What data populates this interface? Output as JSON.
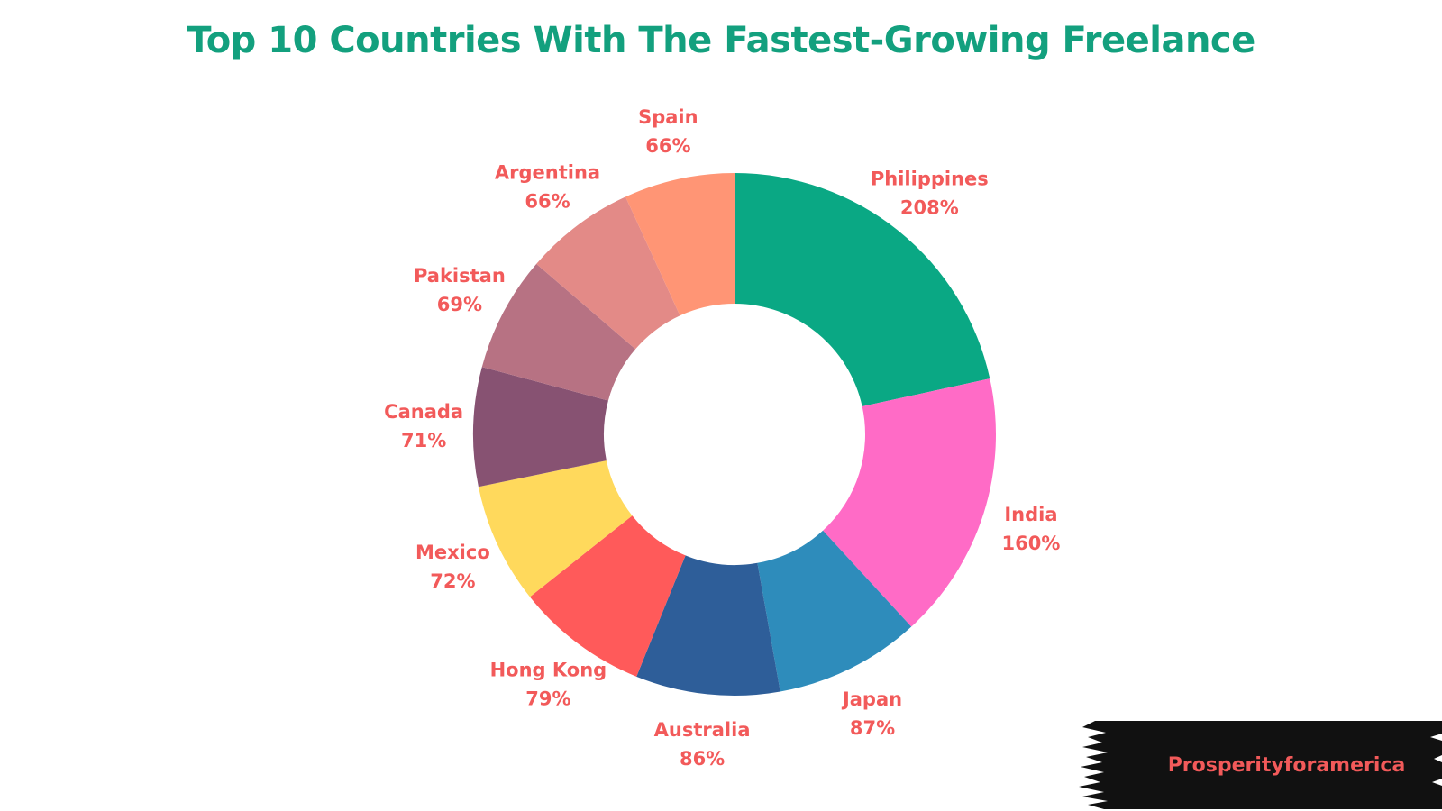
{
  "title": "Top 10 Countries With The Fastest-Growing Freelance",
  "watermark": {
    "text": "Prosperityforamerica"
  },
  "colors": {
    "title": "#13a07e",
    "label": "#f25a5a",
    "watermark_bg": "#111111"
  },
  "chart_data": {
    "type": "pie",
    "title": "Top 10 Countries With The Fastest-Growing Freelance",
    "unit": "%",
    "donut": true,
    "slices": [
      {
        "label": "Philippines",
        "value": 208,
        "value_label": "208%",
        "color": "#0aa884"
      },
      {
        "label": "India",
        "value": 160,
        "value_label": "160%",
        "color": "#ff6bc6"
      },
      {
        "label": "Japan",
        "value": 87,
        "value_label": "87%",
        "color": "#2e8cbb"
      },
      {
        "label": "Australia",
        "value": 86,
        "value_label": "86%",
        "color": "#2e5e99"
      },
      {
        "label": "Hong Kong",
        "value": 79,
        "value_label": "79%",
        "color": "#ff5a5a"
      },
      {
        "label": "Mexico",
        "value": 72,
        "value_label": "72%",
        "color": "#ffd95c"
      },
      {
        "label": "Canada",
        "value": 71,
        "value_label": "71%",
        "color": "#875272"
      },
      {
        "label": "Pakistan",
        "value": 69,
        "value_label": "69%",
        "color": "#b77283"
      },
      {
        "label": "Argentina",
        "value": 66,
        "value_label": "66%",
        "color": "#e38a87"
      },
      {
        "label": "Spain",
        "value": 66,
        "value_label": "66%",
        "color": "#ff9575"
      }
    ]
  }
}
